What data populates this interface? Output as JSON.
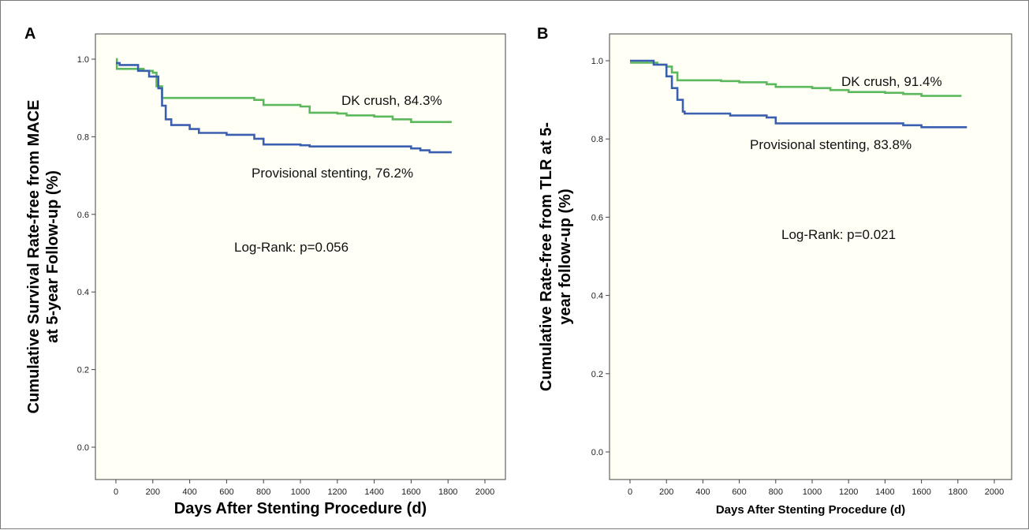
{
  "chart_data": [
    {
      "type": "line",
      "panel_label": "A",
      "xlabel": "Days After Stenting Procedure (d)",
      "ylabel_lines": [
        "Cumulative Survival Rate-free from MACE",
        "at 5-year Follow-up (%)"
      ],
      "xlim": [
        0,
        2000
      ],
      "ylim": [
        0.0,
        1.0
      ],
      "x_ticks": [
        "0",
        "200",
        "400",
        "600",
        "800",
        "1000",
        "1200",
        "1400",
        "1600",
        "1800",
        "2000"
      ],
      "y_ticks": [
        "0.0",
        "0.2",
        "0.4",
        "0.6",
        "0.8",
        "1.0"
      ],
      "grid": false,
      "annotation": "Log-Rank: p=0.056",
      "series": [
        {
          "name": "DK crush, 84.3%",
          "color": "#5cb85c",
          "points": [
            [
              0,
              1.0
            ],
            [
              5,
              0.975
            ],
            [
              120,
              0.975
            ],
            [
              150,
              0.97
            ],
            [
              200,
              0.965
            ],
            [
              220,
              0.93
            ],
            [
              250,
              0.9
            ],
            [
              600,
              0.9
            ],
            [
              750,
              0.895
            ],
            [
              800,
              0.882
            ],
            [
              1000,
              0.878
            ],
            [
              1050,
              0.862
            ],
            [
              1200,
              0.86
            ],
            [
              1250,
              0.855
            ],
            [
              1400,
              0.852
            ],
            [
              1500,
              0.845
            ],
            [
              1600,
              0.838
            ],
            [
              1820,
              0.838
            ]
          ]
        },
        {
          "name": "Provisional stenting, 76.2%",
          "color": "#3b5fb0",
          "points": [
            [
              0,
              0.99
            ],
            [
              20,
              0.985
            ],
            [
              120,
              0.97
            ],
            [
              180,
              0.955
            ],
            [
              230,
              0.925
            ],
            [
              250,
              0.88
            ],
            [
              270,
              0.845
            ],
            [
              300,
              0.83
            ],
            [
              400,
              0.82
            ],
            [
              450,
              0.81
            ],
            [
              600,
              0.805
            ],
            [
              750,
              0.795
            ],
            [
              800,
              0.78
            ],
            [
              1000,
              0.778
            ],
            [
              1050,
              0.775
            ],
            [
              1200,
              0.775
            ],
            [
              1450,
              0.775
            ],
            [
              1600,
              0.77
            ],
            [
              1650,
              0.765
            ],
            [
              1700,
              0.76
            ],
            [
              1820,
              0.76
            ]
          ]
        }
      ]
    },
    {
      "type": "line",
      "panel_label": "B",
      "xlabel": "Days After Stenting Procedure (d)",
      "ylabel_lines": [
        "Cumulative Rate-free from TLR at 5-",
        "year follow-up (%)"
      ],
      "xlim": [
        0,
        2000
      ],
      "ylim": [
        0.0,
        1.0
      ],
      "x_ticks": [
        "0",
        "200",
        "400",
        "600",
        "800",
        "1000",
        "1200",
        "1400",
        "1600",
        "1800",
        "2000"
      ],
      "y_ticks": [
        "0.0",
        "0.2",
        "0.4",
        "0.6",
        "0.8",
        "1.0"
      ],
      "grid": false,
      "annotation": "Log-Rank: p=0.021",
      "series": [
        {
          "name": "DK crush, 91.4%",
          "color": "#5cb85c",
          "points": [
            [
              0,
              0.995
            ],
            [
              100,
              0.995
            ],
            [
              150,
              0.99
            ],
            [
              200,
              0.985
            ],
            [
              230,
              0.97
            ],
            [
              260,
              0.95
            ],
            [
              500,
              0.948
            ],
            [
              600,
              0.945
            ],
            [
              750,
              0.94
            ],
            [
              800,
              0.933
            ],
            [
              1000,
              0.93
            ],
            [
              1100,
              0.925
            ],
            [
              1200,
              0.92
            ],
            [
              1300,
              0.92
            ],
            [
              1400,
              0.918
            ],
            [
              1500,
              0.915
            ],
            [
              1600,
              0.91
            ],
            [
              1820,
              0.91
            ]
          ]
        },
        {
          "name": "Provisional stenting, 83.8%",
          "color": "#3b5fb0",
          "points": [
            [
              0,
              1.0
            ],
            [
              80,
              1.0
            ],
            [
              130,
              0.99
            ],
            [
              200,
              0.96
            ],
            [
              230,
              0.93
            ],
            [
              260,
              0.9
            ],
            [
              290,
              0.87
            ],
            [
              300,
              0.865
            ],
            [
              500,
              0.865
            ],
            [
              550,
              0.86
            ],
            [
              750,
              0.855
            ],
            [
              800,
              0.84
            ],
            [
              1000,
              0.84
            ],
            [
              1400,
              0.84
            ],
            [
              1500,
              0.835
            ],
            [
              1600,
              0.83
            ],
            [
              1850,
              0.83
            ]
          ]
        }
      ]
    }
  ]
}
